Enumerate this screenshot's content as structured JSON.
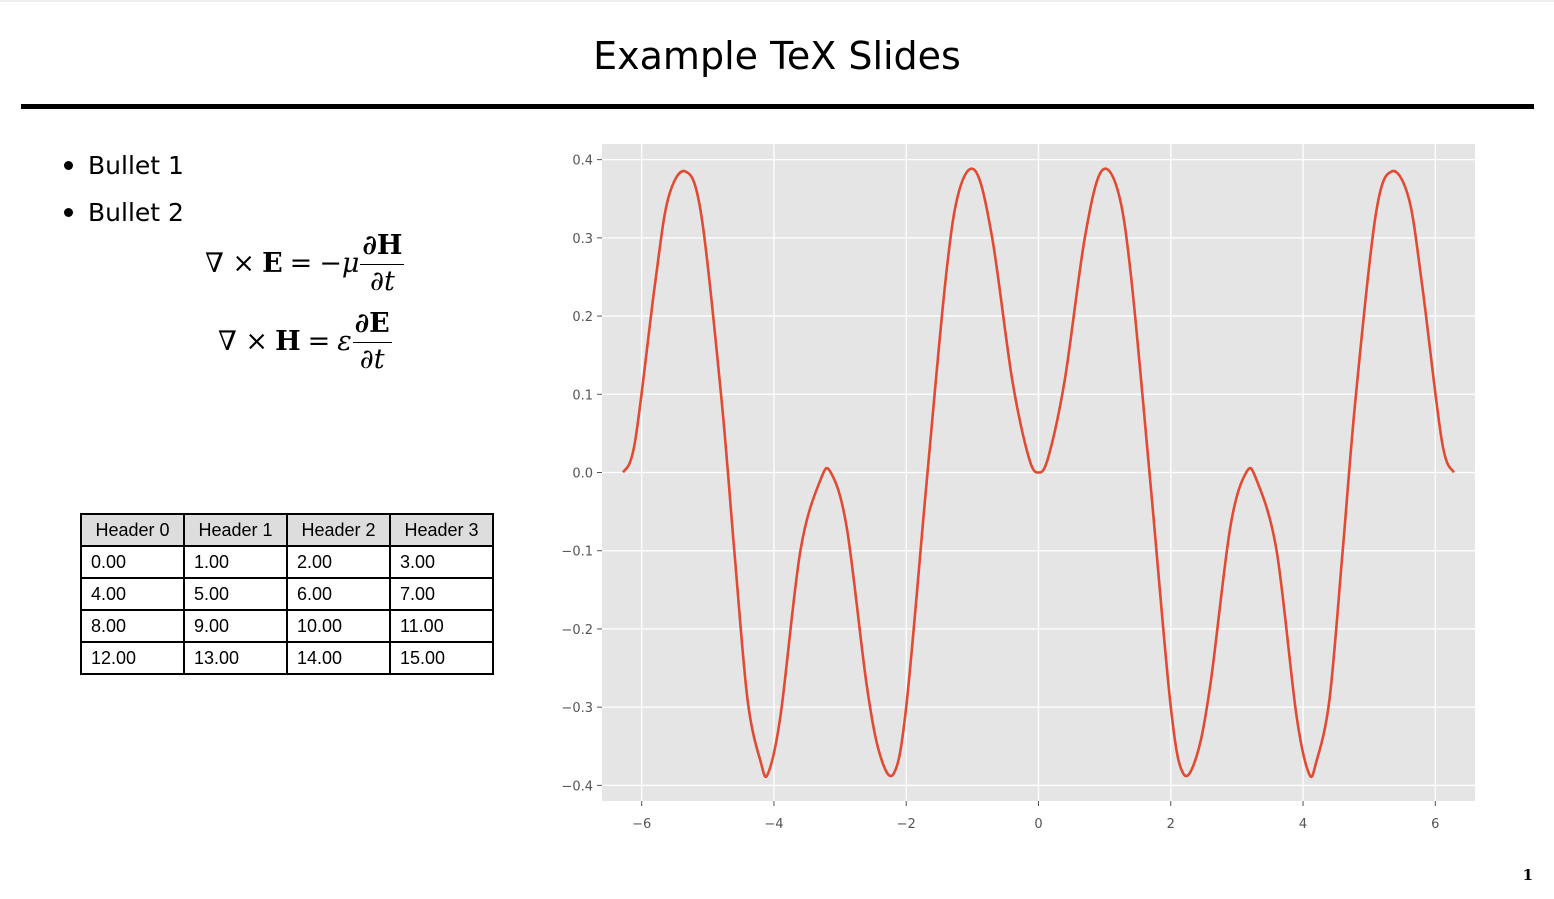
{
  "slide": {
    "title": "Example TeX Slides",
    "page_number": "1"
  },
  "bullets": [
    "Bullet 1",
    "Bullet 2"
  ],
  "equations": [
    {
      "lhs_op": "∇ ×",
      "lhs_var": "E",
      "eq": "=",
      "coef": "−μ",
      "num": "∂H",
      "den": "∂t"
    },
    {
      "lhs_op": "∇ ×",
      "lhs_var": "H",
      "eq": "=",
      "coef": "ε",
      "num": "∂E",
      "den": "∂t"
    }
  ],
  "table": {
    "headers": [
      "Header 0",
      "Header 1",
      "Header 2",
      "Header 3"
    ],
    "rows": [
      [
        "0.00",
        "1.00",
        "2.00",
        "3.00"
      ],
      [
        "4.00",
        "5.00",
        "6.00",
        "7.00"
      ],
      [
        "8.00",
        "9.00",
        "10.00",
        "11.00"
      ],
      [
        "12.00",
        "13.00",
        "14.00",
        "15.00"
      ]
    ]
  },
  "chart_data": {
    "type": "line",
    "title": "",
    "xlabel": "",
    "ylabel": "",
    "xlim": [
      -6.6,
      6.6
    ],
    "ylim": [
      -0.42,
      0.42
    ],
    "xticks": [
      -6,
      -4,
      -2,
      0,
      2,
      4,
      6
    ],
    "xtick_labels": [
      "−6",
      "−4",
      "−2",
      "0",
      "2",
      "4",
      "6"
    ],
    "yticks": [
      0.4,
      0.3,
      0.2,
      0.1,
      0.0,
      -0.1,
      -0.2,
      -0.3,
      -0.4
    ],
    "ytick_labels": [
      "0.4",
      "0.3",
      "0.2",
      "0.1",
      "0.0",
      "−0.1",
      "−0.2",
      "−0.3",
      "−0.4"
    ],
    "grid": true,
    "series": [
      {
        "color": "#e24a33",
        "x": [
          -6.28,
          -6.1,
          -5.8,
          -5.6,
          -5.34,
          -5.1,
          -4.8,
          -4.6,
          -4.4,
          -4.2,
          -4.09,
          -3.9,
          -3.6,
          -3.3,
          -3.14,
          -2.9,
          -2.6,
          -2.4,
          -2.19,
          -2.0,
          -1.7,
          -1.4,
          -1.2,
          -0.95,
          -0.7,
          -0.4,
          -0.15,
          0.0,
          0.15,
          0.4,
          0.7,
          0.95,
          1.2,
          1.4,
          1.7,
          2.0,
          2.19,
          2.4,
          2.6,
          2.9,
          3.14,
          3.3,
          3.6,
          3.9,
          4.09,
          4.2,
          4.4,
          4.6,
          4.8,
          5.1,
          5.34,
          5.6,
          5.8,
          6.1,
          6.28
        ],
        "y": [
          0.0,
          0.04,
          0.24,
          0.35,
          0.385,
          0.33,
          0.1,
          -0.1,
          -0.29,
          -0.37,
          -0.385,
          -0.31,
          -0.1,
          -0.01,
          0.0,
          -0.07,
          -0.27,
          -0.36,
          -0.385,
          -0.3,
          -0.02,
          0.25,
          0.36,
          0.385,
          0.3,
          0.12,
          0.02,
          0.0,
          0.02,
          0.12,
          0.3,
          0.385,
          0.36,
          0.25,
          -0.02,
          -0.3,
          -0.385,
          -0.36,
          -0.27,
          -0.07,
          0.0,
          -0.01,
          -0.1,
          -0.31,
          -0.385,
          -0.37,
          -0.29,
          -0.1,
          0.1,
          0.33,
          0.385,
          0.35,
          0.24,
          0.04,
          0.0
        ]
      }
    ]
  }
}
